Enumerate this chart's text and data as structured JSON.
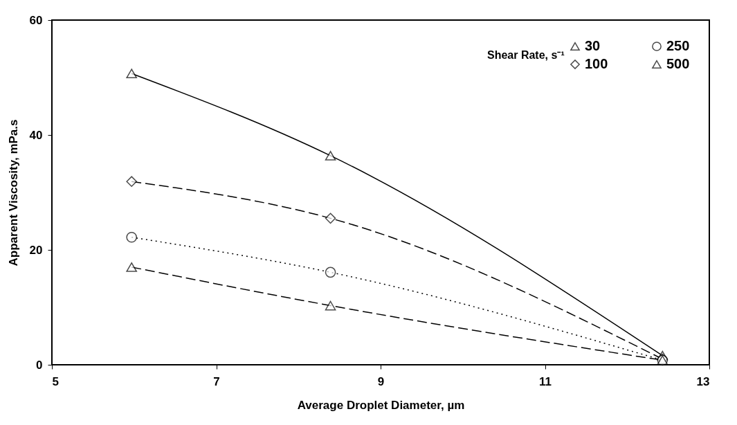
{
  "chart_data": {
    "type": "line",
    "xlabel": "Average Droplet Diameter, µm",
    "ylabel": "Apparent Viscosity, mPa.s",
    "legend_title": "Shear Rate, s⁻¹",
    "legend": "top right",
    "grid": false,
    "xlim": [
      5,
      13
    ],
    "xticks": [
      5,
      7,
      9,
      11,
      13
    ],
    "ylim": [
      0,
      60
    ],
    "yticks": [
      0,
      20,
      40,
      60
    ],
    "x": [
      5.97,
      8.39,
      12.43
    ],
    "series": [
      {
        "name": "30",
        "color": "#000000",
        "marker": "triangle",
        "line_style": "solid",
        "values": [
          50.7,
          36.4,
          1.6
        ]
      },
      {
        "name": "100",
        "color": "#000000",
        "marker": "diamond",
        "line_style": "dashed",
        "values": [
          31.9,
          25.5,
          1.0
        ]
      },
      {
        "name": "250",
        "color": "#000000",
        "marker": "circle",
        "line_style": "dotted",
        "values": [
          22.2,
          16.1,
          0.8
        ]
      },
      {
        "name": "500",
        "color": "#000000",
        "marker": "triangle",
        "line_style": "dashed",
        "values": [
          17.0,
          10.3,
          0.8
        ]
      }
    ]
  }
}
